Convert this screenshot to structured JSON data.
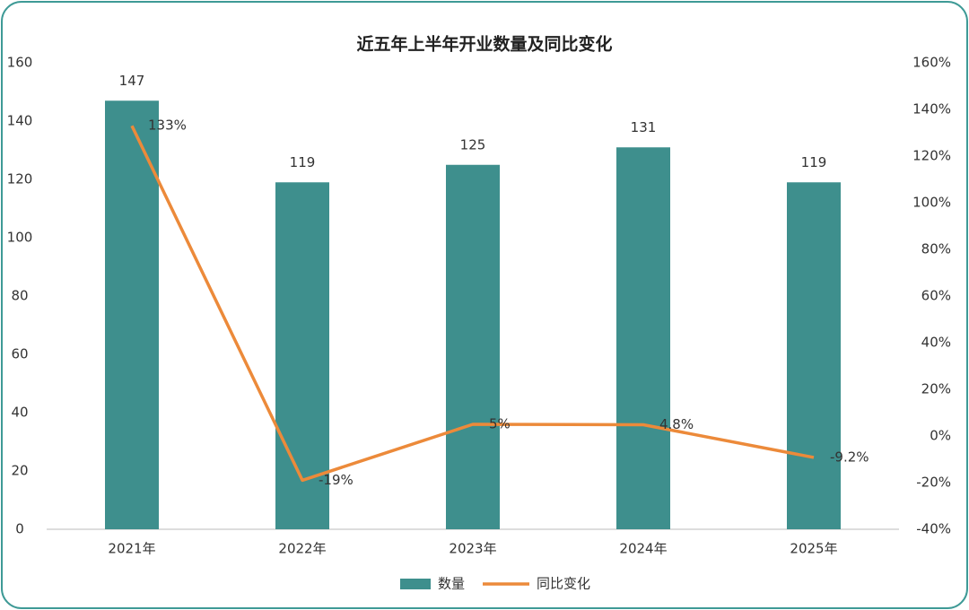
{
  "chart_data": {
    "type": "bar",
    "title": "近五年上半年开业数量及同比变化",
    "categories": [
      "2021年",
      "2022年",
      "2023年",
      "2024年",
      "2025年"
    ],
    "series": [
      {
        "name": "数量",
        "color": "#3e8f8d",
        "values": [
          147,
          119,
          125,
          131,
          119
        ]
      },
      {
        "name": "同比变化",
        "color": "#ec8a3a",
        "type": "line",
        "axis": "y2",
        "values": [
          133,
          -19,
          5,
          4.8,
          -9.2
        ],
        "value_labels": [
          "133%",
          "-19%",
          "5%",
          "4.8%",
          "-9.2%"
        ]
      }
    ],
    "ylim": [
      0,
      160
    ],
    "yticks": [
      0,
      20,
      40,
      60,
      80,
      100,
      120,
      140,
      160
    ],
    "y2lim": [
      -40,
      160
    ],
    "y2ticks": [
      {
        "value": -40,
        "label": "-40%"
      },
      {
        "value": -20,
        "label": "-20%"
      },
      {
        "value": 0,
        "label": "0%"
      },
      {
        "value": 20,
        "label": "20%"
      },
      {
        "value": 40,
        "label": "40%"
      },
      {
        "value": 60,
        "label": "60%"
      },
      {
        "value": 80,
        "label": "80%"
      },
      {
        "value": 100,
        "label": "100%"
      },
      {
        "value": 120,
        "label": "120%"
      },
      {
        "value": 140,
        "label": "140%"
      },
      {
        "value": 160,
        "label": "160%"
      }
    ],
    "grid": false,
    "legend": "bottom"
  }
}
